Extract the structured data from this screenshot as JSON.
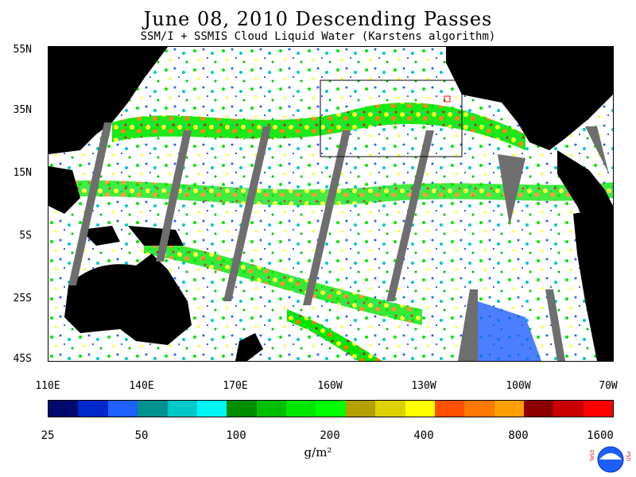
{
  "header": {
    "title": "June 08, 2010  Descending Passes",
    "subtitle": "SSM/I + SSMIS Cloud Liquid Water (Karstens algorithm)"
  },
  "map": {
    "lat_labels": [
      "55N",
      "35N",
      "15N",
      "5S",
      "25S",
      "45S"
    ],
    "lon_labels": [
      "110E",
      "140E",
      "170E",
      "160W",
      "130W",
      "100W",
      "70W"
    ],
    "land_color": "#000000",
    "no_data_color": "#6e6e6e",
    "background_color": "#ffffff"
  },
  "colorbar": {
    "colors": [
      "#000a6e",
      "#0028c8",
      "#1e5fff",
      "#00918f",
      "#00c8c8",
      "#00f5f5",
      "#008c00",
      "#00be00",
      "#00e600",
      "#00ff00",
      "#b4a000",
      "#dcd200",
      "#ffff00",
      "#ff5000",
      "#ff7800",
      "#ffa000",
      "#8c0000",
      "#c80000",
      "#ff0000"
    ],
    "tick_labels": [
      "25",
      "50",
      "100",
      "200",
      "400",
      "800",
      "1600"
    ],
    "units": "g/m²"
  },
  "logo": {
    "left_text": "ESRL",
    "right_text": "PSD",
    "center_text": "NOAA"
  }
}
